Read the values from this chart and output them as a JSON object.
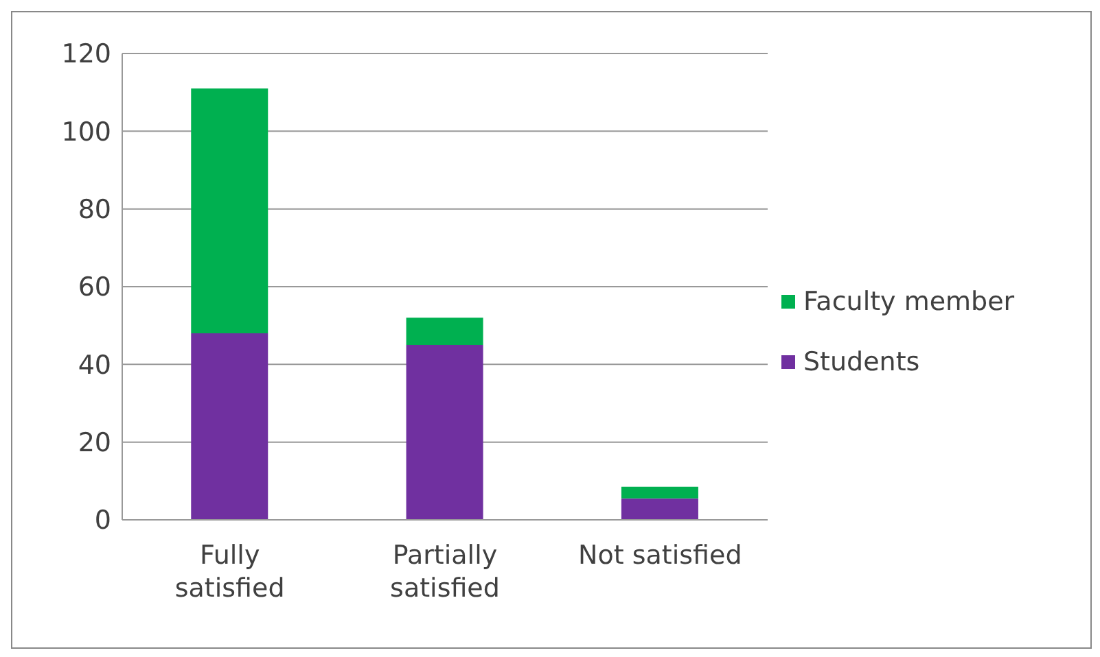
{
  "chart_data": {
    "type": "bar",
    "stacked": true,
    "categories": [
      "Fully satisfied",
      "Partially satisfied",
      "Not satisfied"
    ],
    "series": [
      {
        "name": "Students",
        "color": "#7030a0",
        "values": [
          48,
          45,
          5.5
        ]
      },
      {
        "name": "Faculty member",
        "color": "#00b050",
        "values": [
          63,
          7,
          3
        ]
      }
    ],
    "ylim": [
      0,
      120
    ],
    "yticks": [
      0,
      20,
      40,
      60,
      80,
      100,
      120
    ],
    "grid": "y",
    "legend": "right"
  }
}
